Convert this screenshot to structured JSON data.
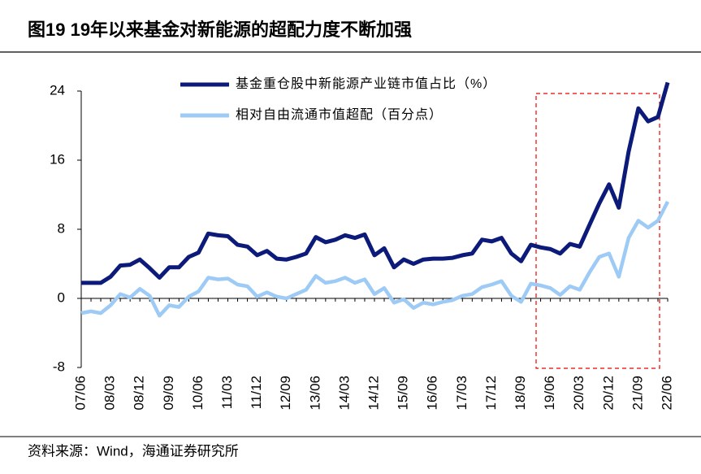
{
  "chart_data": {
    "type": "line",
    "title": "图19  19年以来基金对新能源的超配力度不断加强",
    "source": "资料来源：Wind，海通证券研究所",
    "categories": [
      "07/06",
      null,
      null,
      "08/03",
      null,
      null,
      "08/12",
      null,
      null,
      "09/09",
      null,
      null,
      "10/06",
      null,
      null,
      "11/03",
      null,
      null,
      "11/12",
      null,
      null,
      "12/09",
      null,
      null,
      "13/06",
      null,
      null,
      "14/03",
      null,
      null,
      "14/12",
      null,
      null,
      "15/09",
      null,
      null,
      "16/06",
      null,
      null,
      "17/03",
      null,
      null,
      "17/12",
      null,
      null,
      "18/09",
      null,
      null,
      "19/06",
      null,
      null,
      "20/03",
      null,
      null,
      "20/12",
      null,
      null,
      "21/09",
      null,
      null,
      "22/06"
    ],
    "series": [
      {
        "name": "基金重仓股中新能源产业链市值占比（%）",
        "color": "#0c1a7a",
        "values": [
          1.8,
          1.8,
          1.8,
          2.5,
          3.8,
          3.9,
          4.5,
          3.5,
          2.4,
          3.6,
          3.6,
          4.8,
          5.3,
          7.5,
          7.3,
          7.2,
          6.2,
          6.0,
          5.0,
          5.5,
          4.6,
          4.5,
          4.8,
          5.2,
          7.1,
          6.5,
          6.8,
          7.3,
          7.0,
          7.4,
          5.0,
          5.8,
          3.6,
          4.5,
          4.0,
          4.5,
          4.6,
          4.6,
          4.7,
          5.0,
          5.2,
          6.8,
          6.6,
          7.0,
          5.2,
          4.3,
          6.2,
          5.9,
          5.7,
          5.2,
          6.3,
          6.0,
          8.5,
          11,
          13.2,
          10.5,
          17,
          22,
          20.5,
          21,
          25
        ]
      },
      {
        "name": "相对自由流通市值超配（百分点）",
        "color": "#9dcbf5",
        "values": [
          -1.7,
          -1.5,
          -1.7,
          -0.8,
          0.5,
          0.1,
          1.1,
          0.3,
          -2.0,
          -0.8,
          -1.0,
          0.2,
          0.8,
          2.4,
          2.2,
          2.3,
          1.6,
          1.4,
          0.2,
          0.7,
          0.2,
          0.0,
          0.5,
          1.0,
          2.6,
          1.8,
          2.0,
          2.4,
          1.8,
          2.2,
          0.5,
          1.2,
          -0.5,
          -0.1,
          -1.1,
          -0.5,
          -0.7,
          -0.4,
          -0.2,
          0.3,
          0.5,
          1.3,
          1.6,
          2.0,
          0.3,
          -0.4,
          1.7,
          1.5,
          1.2,
          0.4,
          1.4,
          1.0,
          3.0,
          4.8,
          5.2,
          2.5,
          7.0,
          9.0,
          8.2,
          9.0,
          11.2
        ]
      }
    ],
    "ylim": [
      -8,
      24
    ],
    "yticks": [
      24,
      16,
      8,
      0,
      -8
    ],
    "legend": "upper left"
  }
}
